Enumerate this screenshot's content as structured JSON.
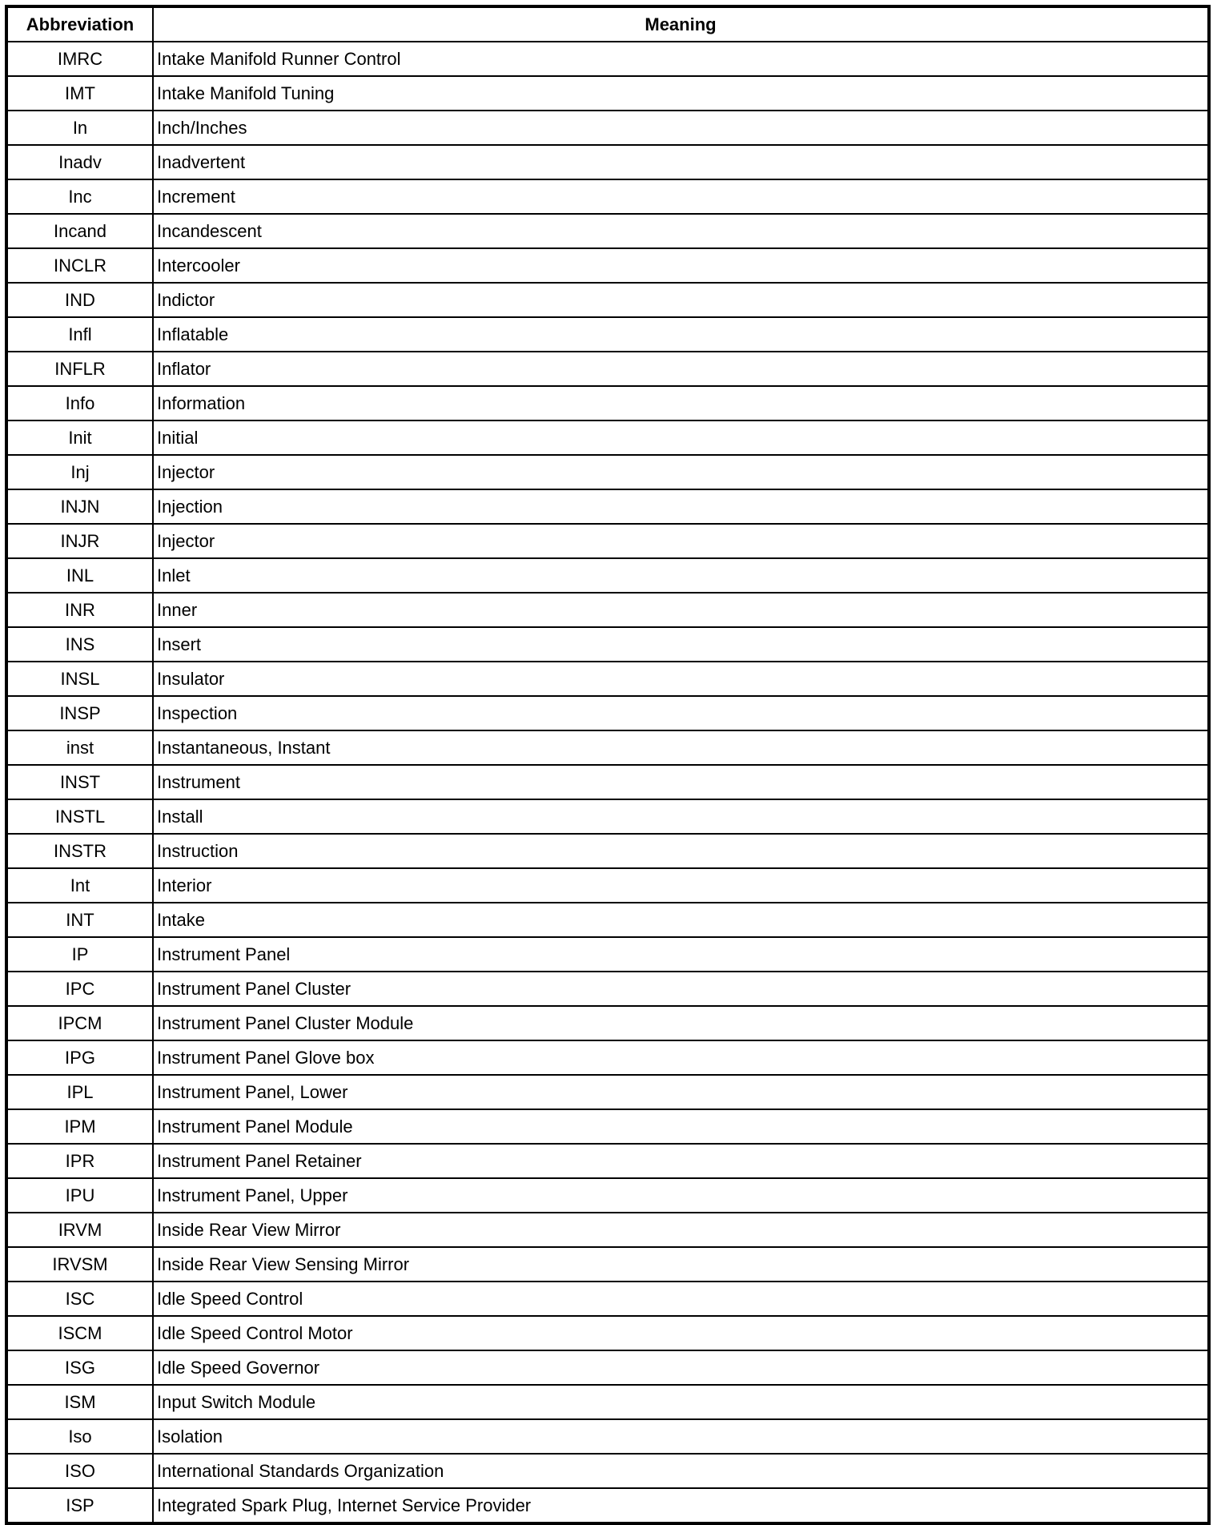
{
  "headers": {
    "abbreviation": "Abbreviation",
    "meaning": "Meaning"
  },
  "rows": [
    {
      "abbr": "IMRC",
      "meaning": "Intake Manifold Runner Control"
    },
    {
      "abbr": "IMT",
      "meaning": "Intake Manifold Tuning"
    },
    {
      "abbr": "In",
      "meaning": "Inch/Inches"
    },
    {
      "abbr": "Inadv",
      "meaning": "Inadvertent"
    },
    {
      "abbr": "Inc",
      "meaning": "Increment"
    },
    {
      "abbr": "Incand",
      "meaning": "Incandescent"
    },
    {
      "abbr": "INCLR",
      "meaning": "Intercooler"
    },
    {
      "abbr": "IND",
      "meaning": "Indictor"
    },
    {
      "abbr": "Infl",
      "meaning": "Inflatable"
    },
    {
      "abbr": "INFLR",
      "meaning": "Inflator"
    },
    {
      "abbr": "Info",
      "meaning": "Information"
    },
    {
      "abbr": "Init",
      "meaning": "Initial"
    },
    {
      "abbr": "Inj",
      "meaning": "Injector"
    },
    {
      "abbr": "INJN",
      "meaning": "Injection"
    },
    {
      "abbr": "INJR",
      "meaning": "Injector"
    },
    {
      "abbr": "INL",
      "meaning": "Inlet"
    },
    {
      "abbr": "INR",
      "meaning": "Inner"
    },
    {
      "abbr": "INS",
      "meaning": "Insert"
    },
    {
      "abbr": "INSL",
      "meaning": "Insulator"
    },
    {
      "abbr": "INSP",
      "meaning": "Inspection"
    },
    {
      "abbr": "inst",
      "meaning": "Instantaneous, Instant"
    },
    {
      "abbr": "INST",
      "meaning": "Instrument"
    },
    {
      "abbr": "INSTL",
      "meaning": "Install"
    },
    {
      "abbr": "INSTR",
      "meaning": "Instruction"
    },
    {
      "abbr": "Int",
      "meaning": "Interior"
    },
    {
      "abbr": "INT",
      "meaning": "Intake"
    },
    {
      "abbr": "IP",
      "meaning": "Instrument Panel"
    },
    {
      "abbr": "IPC",
      "meaning": "Instrument Panel Cluster"
    },
    {
      "abbr": "IPCM",
      "meaning": "Instrument Panel Cluster Module"
    },
    {
      "abbr": "IPG",
      "meaning": "Instrument Panel Glove box"
    },
    {
      "abbr": "IPL",
      "meaning": "Instrument Panel, Lower"
    },
    {
      "abbr": "IPM",
      "meaning": "Instrument Panel Module"
    },
    {
      "abbr": "IPR",
      "meaning": "Instrument Panel Retainer"
    },
    {
      "abbr": "IPU",
      "meaning": "Instrument Panel, Upper"
    },
    {
      "abbr": "IRVM",
      "meaning": "Inside Rear View Mirror"
    },
    {
      "abbr": "IRVSM",
      "meaning": "Inside Rear View Sensing Mirror"
    },
    {
      "abbr": "ISC",
      "meaning": "Idle Speed Control"
    },
    {
      "abbr": "ISCM",
      "meaning": "Idle Speed Control Motor"
    },
    {
      "abbr": "ISG",
      "meaning": "Idle Speed Governor"
    },
    {
      "abbr": "ISM",
      "meaning": "Input Switch Module"
    },
    {
      "abbr": "Iso",
      "meaning": "Isolation"
    },
    {
      "abbr": "ISO",
      "meaning": "International Standards Organization"
    },
    {
      "abbr": "ISP",
      "meaning": "Integrated Spark Plug, Internet Service Provider"
    }
  ]
}
